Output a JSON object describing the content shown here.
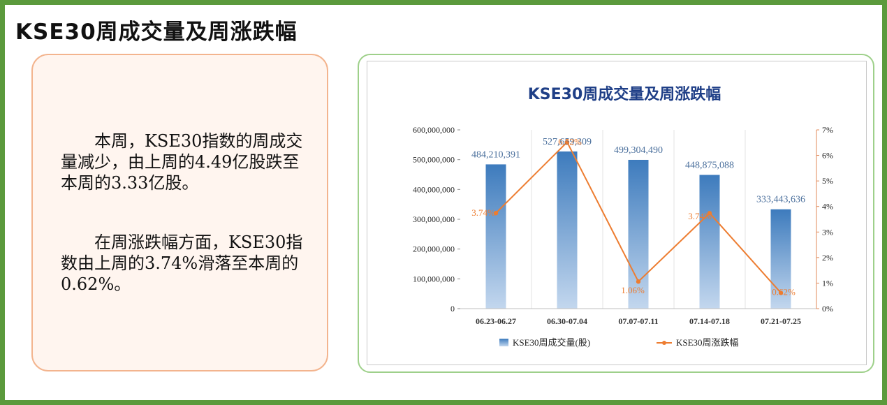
{
  "page": {
    "title": "KSE30周成交量及周涨跌幅",
    "paragraph1": "　　本周，KSE30指数的周成交量减少，由上周的4.49亿股跌至本周的3.33亿股。",
    "paragraph2": "　　在周涨跌幅方面，KSE30指数由上周的3.74%滑落至本周的0.62%。"
  },
  "colors": {
    "frame": "#5b9a3c",
    "bar_top": "#3d7bbd",
    "bar_bottom": "#c3d7ee",
    "line": "#ed7d31",
    "title": "#1f3f87",
    "value_label": "#4a6f9c"
  },
  "chart_data": {
    "type": "bar",
    "title": "KSE30周成交量及周涨跌幅",
    "categories": [
      "06.23-06.27",
      "06.30-07.04",
      "07.07-07.11",
      "07.14-07.18",
      "07.21-07.25"
    ],
    "series": [
      {
        "name": "KSE30周成交量(股)",
        "type": "bar",
        "axis": "left",
        "values": [
          484210391,
          527659309,
          499304490,
          448875088,
          333443636
        ],
        "labels": [
          "484,210,391",
          "527,659,309",
          "499,304,490",
          "448,875,088",
          "333,443,636"
        ]
      },
      {
        "name": "KSE30周涨跌幅",
        "type": "line",
        "axis": "right",
        "values": [
          3.74,
          6.52,
          1.06,
          3.74,
          0.62
        ],
        "labels": [
          "3.74%",
          "6.52%",
          "1.06%",
          "3.74%",
          "0.62%"
        ]
      }
    ],
    "y_left": {
      "lim": [
        0,
        600000000
      ],
      "ticks": [
        "0",
        "100,000,000",
        "200,000,000",
        "300,000,000",
        "400,000,000",
        "500,000,000",
        "600,000,000"
      ]
    },
    "y_right": {
      "lim": [
        0,
        7
      ],
      "ticks": [
        "0%",
        "1%",
        "2%",
        "3%",
        "4%",
        "5%",
        "6%",
        "7%"
      ]
    },
    "grid": "vertical",
    "legend": "bottom"
  }
}
